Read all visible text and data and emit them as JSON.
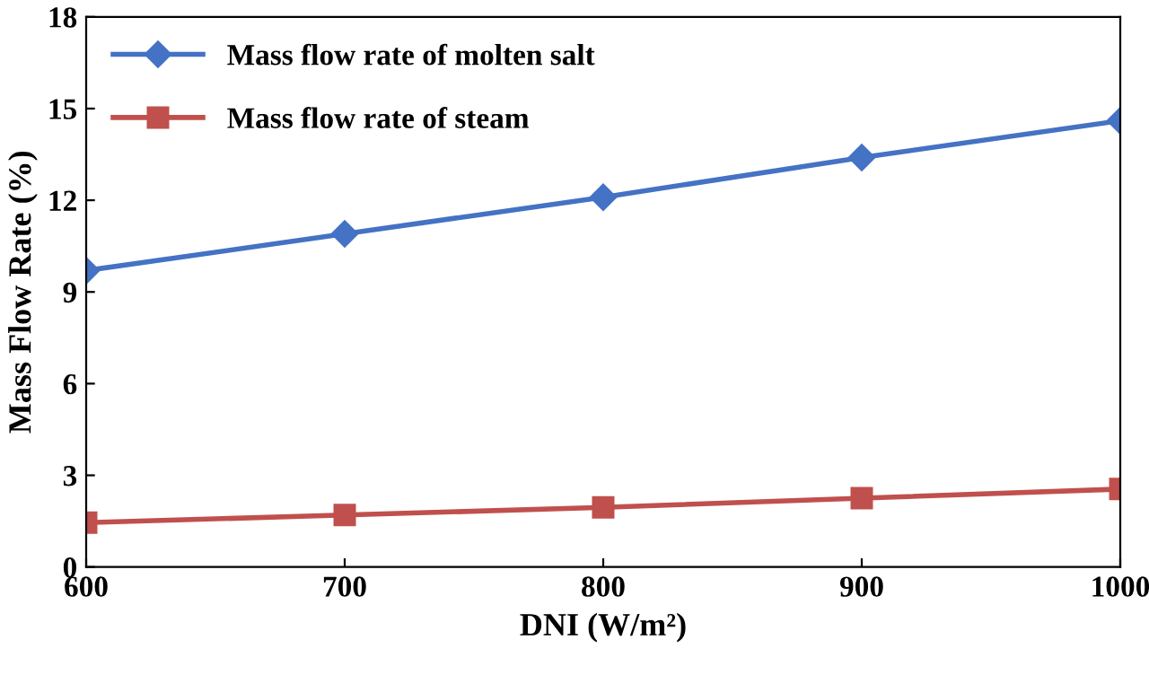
{
  "chart_data": {
    "type": "line",
    "xlabel": "DNI (W/m²)",
    "ylabel": "Mass Flow Rate (%)",
    "x": [
      600,
      700,
      800,
      900,
      1000
    ],
    "series": [
      {
        "name": "Mass flow rate of molten salt",
        "color": "#4472c4",
        "marker": "diamond",
        "values": [
          9.7,
          10.9,
          12.1,
          13.4,
          14.6
        ]
      },
      {
        "name": "Mass flow rate of steam",
        "color": "#c0504d",
        "marker": "square",
        "values": [
          1.45,
          1.7,
          1.95,
          2.25,
          2.55
        ]
      }
    ],
    "xlim": [
      600,
      1000
    ],
    "xticks": [
      600,
      700,
      800,
      900,
      1000
    ],
    "ylim": [
      0,
      18
    ],
    "yticks": [
      0,
      3,
      6,
      9,
      12,
      15,
      18
    ],
    "grid": false,
    "legend": "top left",
    "line_style": "solid"
  }
}
